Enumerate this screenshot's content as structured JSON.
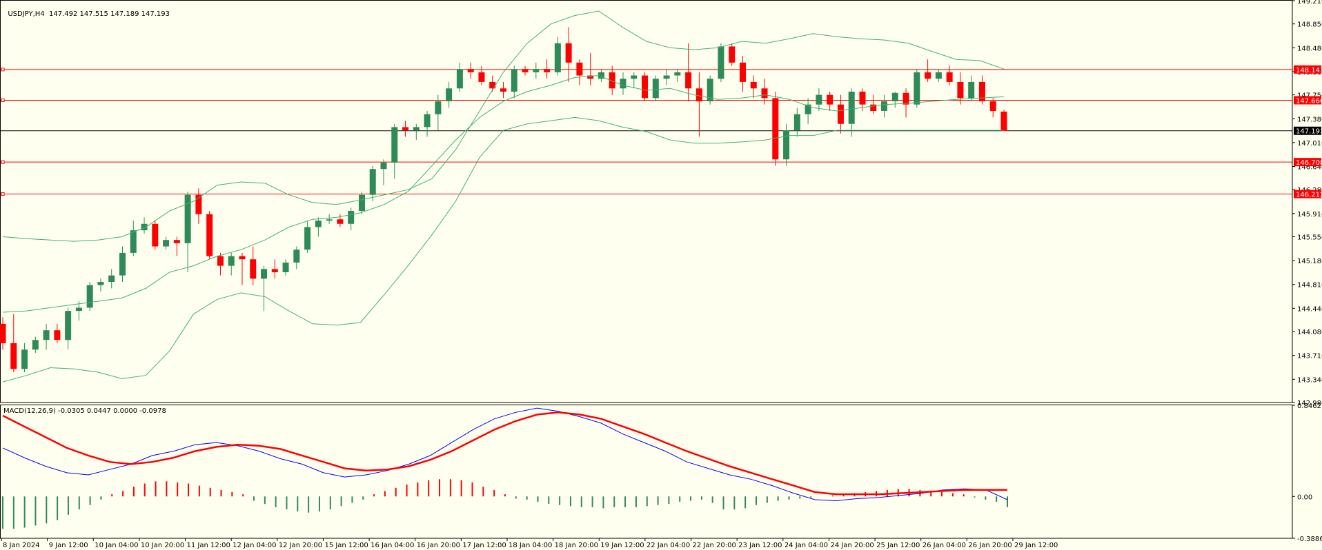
{
  "header": {
    "symbol": "USDJPY,H4",
    "ohlc": "147.492 147.515 147.189 147.193"
  },
  "macd_header": "MACD(12,26,9) -0.0305 0.0447 0.0000 -0.0978",
  "colors": {
    "background": "#fffff0",
    "bull": "#2e8b57",
    "bear": "#ff0000",
    "band": "#3cb371",
    "level": "#ff0000",
    "macd_main": "#0000ff",
    "macd_signal": "#ff0000",
    "grid_text": "#000000"
  },
  "price_axis": {
    "ticks": [
      "149.210",
      "148.850",
      "148.480",
      "148.110",
      "147.750",
      "147.380",
      "147.010",
      "146.640",
      "146.280",
      "145.910",
      "145.550",
      "145.180",
      "144.810",
      "144.440",
      "144.080",
      "143.710",
      "143.340",
      "142.980"
    ]
  },
  "macd_axis": {
    "ticks": [
      "0.8462",
      "0.00",
      "-0.3886"
    ]
  },
  "levels": [
    {
      "price": 148.143,
      "label": "148.143"
    },
    {
      "price": 147.666,
      "label": "147.666"
    },
    {
      "price": 146.708,
      "label": "146.708"
    },
    {
      "price": 146.212,
      "label": "146.212"
    }
  ],
  "current_price": {
    "price": 147.193,
    "label": "147.193"
  },
  "time_axis": [
    "8 Jan 2024",
    "9 Jan 12:00",
    "10 Jan 04:00",
    "10 Jan 20:00",
    "11 Jan 12:00",
    "12 Jan 04:00",
    "12 Jan 20:00",
    "15 Jan 12:00",
    "16 Jan 04:00",
    "16 Jan 20:00",
    "17 Jan 12:00",
    "18 Jan 04:00",
    "18 Jan 20:00",
    "19 Jan 12:00",
    "22 Jan 04:00",
    "22 Jan 20:00",
    "23 Jan 12:00",
    "24 Jan 04:00",
    "24 Jan 20:00",
    "25 Jan 12:00",
    "26 Jan 04:00",
    "26 Jan 20:00",
    "29 Jan 12:00"
  ],
  "chart_data": {
    "type": "candlestick",
    "symbol": "USDJPY",
    "timeframe": "H4",
    "ylim": [
      142.98,
      149.21
    ],
    "candles": [
      [
        144.2,
        144.3,
        143.8,
        143.9
      ],
      [
        143.9,
        144.35,
        143.45,
        143.5
      ],
      [
        143.5,
        143.9,
        143.45,
        143.8
      ],
      [
        143.8,
        144.0,
        143.75,
        143.95
      ],
      [
        143.95,
        144.2,
        143.8,
        144.1
      ],
      [
        144.1,
        144.2,
        143.9,
        143.95
      ],
      [
        143.95,
        144.45,
        143.8,
        144.4
      ],
      [
        144.4,
        144.55,
        144.25,
        144.45
      ],
      [
        144.45,
        144.85,
        144.4,
        144.8
      ],
      [
        144.8,
        144.9,
        144.7,
        144.85
      ],
      [
        144.85,
        145.05,
        144.75,
        144.95
      ],
      [
        144.95,
        145.4,
        144.85,
        145.3
      ],
      [
        145.3,
        145.8,
        145.25,
        145.65
      ],
      [
        145.65,
        145.85,
        145.6,
        145.75
      ],
      [
        145.75,
        145.8,
        145.35,
        145.4
      ],
      [
        145.4,
        145.55,
        145.35,
        145.5
      ],
      [
        145.5,
        145.55,
        145.25,
        145.45
      ],
      [
        145.45,
        146.25,
        145.0,
        146.2
      ],
      [
        146.2,
        146.3,
        145.75,
        145.9
      ],
      [
        145.9,
        145.95,
        145.2,
        145.25
      ],
      [
        145.25,
        145.3,
        144.95,
        145.1
      ],
      [
        145.1,
        145.3,
        144.95,
        145.25
      ],
      [
        145.25,
        145.3,
        144.8,
        145.2
      ],
      [
        145.2,
        145.4,
        144.8,
        144.9
      ],
      [
        144.9,
        145.1,
        144.4,
        145.05
      ],
      [
        145.05,
        145.2,
        144.9,
        145.0
      ],
      [
        145.0,
        145.2,
        144.95,
        145.15
      ],
      [
        145.15,
        145.4,
        145.05,
        145.35
      ],
      [
        145.35,
        145.8,
        145.3,
        145.7
      ],
      [
        145.7,
        145.85,
        145.55,
        145.8
      ],
      [
        145.8,
        145.9,
        145.75,
        145.82
      ],
      [
        145.82,
        145.9,
        145.7,
        145.75
      ],
      [
        145.75,
        146.0,
        145.65,
        145.95
      ],
      [
        145.95,
        146.25,
        145.9,
        146.2
      ],
      [
        146.2,
        146.65,
        146.1,
        146.6
      ],
      [
        146.6,
        146.75,
        146.35,
        146.7
      ],
      [
        146.7,
        147.3,
        146.45,
        147.25
      ],
      [
        147.25,
        147.35,
        147.1,
        147.2
      ],
      [
        147.2,
        147.3,
        147.05,
        147.25
      ],
      [
        147.25,
        147.5,
        147.1,
        147.45
      ],
      [
        147.45,
        147.75,
        147.2,
        147.65
      ],
      [
        147.65,
        147.95,
        147.55,
        147.85
      ],
      [
        147.85,
        148.25,
        147.8,
        148.15
      ],
      [
        148.15,
        148.25,
        148.0,
        148.1
      ],
      [
        148.1,
        148.2,
        147.9,
        147.95
      ],
      [
        147.95,
        148.05,
        147.8,
        147.85
      ],
      [
        147.85,
        147.95,
        147.7,
        147.8
      ],
      [
        147.8,
        148.2,
        147.7,
        148.15
      ],
      [
        148.15,
        148.2,
        148.05,
        148.1
      ],
      [
        148.1,
        148.25,
        148.0,
        148.15
      ],
      [
        148.15,
        148.3,
        148.0,
        148.1
      ],
      [
        148.1,
        148.65,
        148.05,
        148.55
      ],
      [
        148.55,
        148.8,
        147.95,
        148.25
      ],
      [
        148.25,
        148.3,
        147.9,
        148.05
      ],
      [
        148.05,
        148.4,
        147.9,
        148.0
      ],
      [
        148.0,
        148.15,
        147.95,
        148.1
      ],
      [
        148.1,
        148.2,
        147.75,
        147.85
      ],
      [
        147.85,
        148.1,
        147.75,
        148.0
      ],
      [
        148.0,
        148.1,
        147.85,
        148.05
      ],
      [
        148.05,
        148.1,
        147.65,
        147.7
      ],
      [
        147.7,
        148.05,
        147.65,
        148.0
      ],
      [
        148.0,
        148.15,
        147.9,
        148.05
      ],
      [
        148.05,
        148.15,
        147.95,
        148.1
      ],
      [
        148.1,
        148.55,
        147.65,
        147.85
      ],
      [
        147.85,
        148.1,
        147.1,
        147.65
      ],
      [
        147.65,
        148.05,
        147.6,
        148.0
      ],
      [
        148.0,
        148.55,
        147.95,
        148.5
      ],
      [
        148.5,
        148.55,
        148.2,
        148.25
      ],
      [
        148.25,
        148.35,
        147.8,
        147.95
      ],
      [
        147.95,
        148.05,
        147.7,
        147.85
      ],
      [
        147.85,
        148.0,
        147.6,
        147.7
      ],
      [
        147.7,
        147.8,
        146.65,
        146.75
      ],
      [
        146.75,
        147.3,
        146.65,
        147.2
      ],
      [
        147.2,
        147.55,
        147.1,
        147.45
      ],
      [
        147.45,
        147.7,
        147.3,
        147.6
      ],
      [
        147.6,
        147.85,
        147.5,
        147.75
      ],
      [
        147.75,
        147.8,
        147.5,
        147.6
      ],
      [
        147.6,
        147.75,
        147.15,
        147.3
      ],
      [
        147.3,
        147.85,
        147.1,
        147.8
      ],
      [
        147.8,
        147.85,
        147.5,
        147.6
      ],
      [
        147.6,
        147.75,
        147.45,
        147.5
      ],
      [
        147.5,
        147.75,
        147.4,
        147.65
      ],
      [
        147.65,
        147.8,
        147.55,
        147.78
      ],
      [
        147.78,
        147.85,
        147.4,
        147.6
      ],
      [
        147.6,
        148.15,
        147.55,
        148.1
      ],
      [
        148.1,
        148.3,
        147.95,
        148.0
      ],
      [
        148.0,
        148.15,
        147.95,
        148.1
      ],
      [
        148.1,
        148.2,
        147.9,
        147.95
      ],
      [
        147.95,
        148.1,
        147.6,
        147.7
      ],
      [
        147.7,
        148.05,
        147.65,
        147.95
      ],
      [
        147.95,
        148.05,
        147.6,
        147.65
      ],
      [
        147.65,
        147.7,
        147.4,
        147.5
      ],
      [
        147.49,
        147.52,
        147.19,
        147.19
      ]
    ],
    "bollinger": {
      "upper": [
        145.55,
        145.52,
        145.5,
        145.48,
        145.5,
        145.55,
        145.7,
        145.95,
        146.1,
        146.35,
        146.4,
        146.38,
        146.2,
        146.08,
        146.05,
        146.12,
        146.2,
        146.28,
        146.45,
        146.9,
        147.5,
        148.1,
        148.55,
        148.85,
        148.98,
        149.05,
        148.8,
        148.58,
        148.48,
        148.45,
        148.48,
        148.58,
        148.55,
        148.62,
        148.7,
        148.65,
        148.62,
        148.6,
        148.55,
        148.42,
        148.3,
        148.28,
        148.15
      ],
      "middle": [
        144.38,
        144.4,
        144.45,
        144.5,
        144.55,
        144.6,
        144.75,
        145.0,
        145.1,
        145.25,
        145.35,
        145.5,
        145.7,
        145.82,
        145.85,
        145.92,
        146.05,
        146.25,
        146.65,
        147.05,
        147.4,
        147.65,
        147.8,
        147.9,
        148.02,
        148.05,
        147.9,
        147.82,
        147.85,
        147.75,
        147.68,
        147.7,
        147.75,
        147.68,
        147.55,
        147.5,
        147.55,
        147.6,
        147.62,
        147.65,
        147.68,
        147.7,
        147.72
      ],
      "lower": [
        143.3,
        143.4,
        143.52,
        143.5,
        143.45,
        143.35,
        143.4,
        143.78,
        144.35,
        144.58,
        144.68,
        144.62,
        144.4,
        144.2,
        144.18,
        144.22,
        144.65,
        145.1,
        145.58,
        146.1,
        146.78,
        147.2,
        147.3,
        147.35,
        147.4,
        147.35,
        147.25,
        147.18,
        147.05,
        147.0,
        147.0,
        147.02,
        147.05,
        147.12,
        147.12,
        147.2,
        147.2,
        147.2,
        147.2,
        147.2,
        147.2,
        147.2,
        147.2
      ]
    },
    "macd": {
      "ylim": [
        -0.3886,
        0.8462
      ],
      "main": [
        0.45,
        0.36,
        0.28,
        0.22,
        0.2,
        0.25,
        0.3,
        0.38,
        0.42,
        0.48,
        0.5,
        0.47,
        0.42,
        0.35,
        0.3,
        0.22,
        0.18,
        0.2,
        0.24,
        0.3,
        0.38,
        0.5,
        0.62,
        0.72,
        0.78,
        0.82,
        0.79,
        0.74,
        0.68,
        0.58,
        0.5,
        0.42,
        0.32,
        0.26,
        0.2,
        0.16,
        0.1,
        0.03,
        -0.03,
        -0.04,
        -0.02,
        -0.01,
        0.01,
        0.03,
        0.06,
        0.07,
        0.06,
        -0.03
      ],
      "signal": [
        0.75,
        0.65,
        0.55,
        0.45,
        0.38,
        0.32,
        0.3,
        0.32,
        0.36,
        0.42,
        0.46,
        0.48,
        0.47,
        0.44,
        0.38,
        0.32,
        0.26,
        0.24,
        0.25,
        0.28,
        0.34,
        0.42,
        0.52,
        0.62,
        0.7,
        0.76,
        0.78,
        0.76,
        0.72,
        0.65,
        0.58,
        0.5,
        0.42,
        0.35,
        0.28,
        0.22,
        0.16,
        0.1,
        0.04,
        0.02,
        0.02,
        0.02,
        0.03,
        0.04,
        0.05,
        0.06,
        0.06,
        0.06
      ],
      "histogram": [
        -0.3,
        -0.3,
        -0.29,
        -0.27,
        -0.25,
        -0.22,
        -0.17,
        -0.12,
        -0.08,
        -0.03,
        0.02,
        0.05,
        0.09,
        0.12,
        0.14,
        0.14,
        0.13,
        0.12,
        0.1,
        0.08,
        0.06,
        0.04,
        0.02,
        -0.04,
        -0.07,
        -0.1,
        -0.12,
        -0.14,
        -0.15,
        -0.14,
        -0.12,
        -0.09,
        -0.06,
        -0.03,
        0.02,
        0.05,
        0.08,
        0.11,
        0.13,
        0.15,
        0.16,
        0.16,
        0.15,
        0.13,
        0.09,
        0.06,
        0.02,
        -0.02,
        -0.03,
        -0.05,
        -0.07,
        -0.08,
        -0.09,
        -0.1,
        -0.1,
        -0.11,
        -0.1,
        -0.1,
        -0.1,
        -0.09,
        -0.08,
        -0.07,
        -0.05,
        -0.04,
        -0.03,
        -0.06,
        -0.12,
        -0.12,
        -0.11,
        -0.08,
        -0.06,
        -0.04,
        -0.03,
        -0.02,
        -0.01,
        0.0,
        0.01,
        0.02,
        0.03,
        0.04,
        0.05,
        0.06,
        0.07,
        0.07,
        0.06,
        0.05,
        0.04,
        0.03,
        0.02,
        -0.01,
        -0.03,
        -0.05,
        -0.1
      ]
    }
  }
}
